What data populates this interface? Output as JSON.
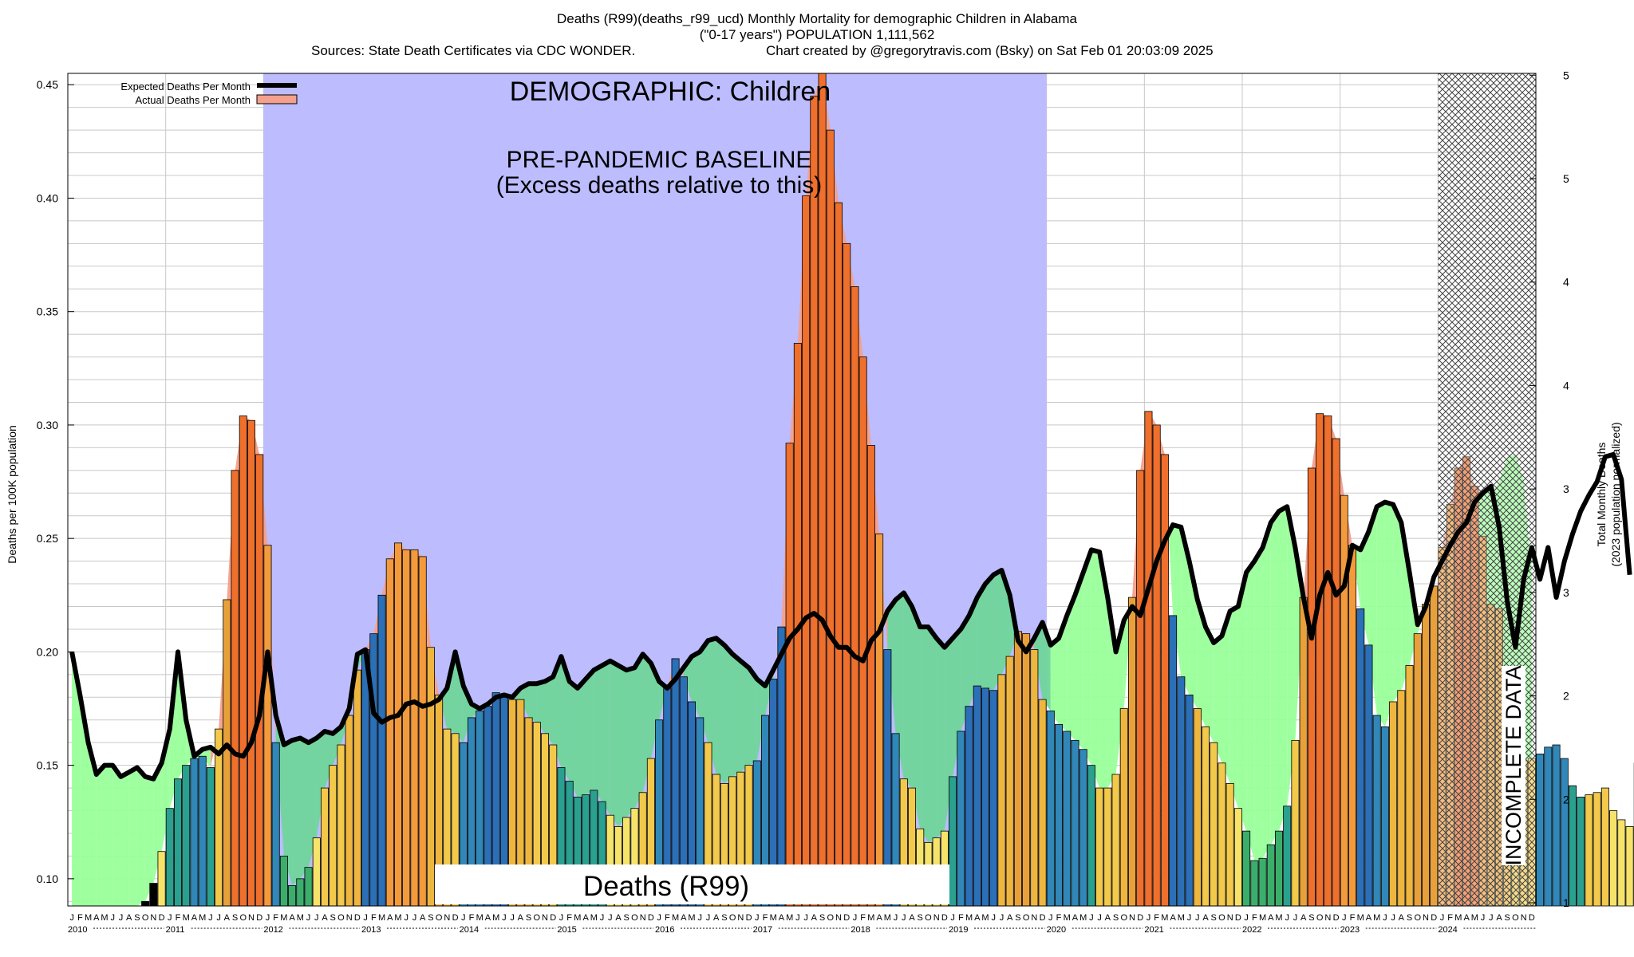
{
  "header": {
    "title": "Deaths (R99)(deaths_r99_ucd) Monthly Mortality for demographic Children in Alabama",
    "subtitle": "(\"0-17 years\") POPULATION 1,111,562",
    "sources": "Sources: State Death Certificates via CDC WONDER.",
    "credit": "Chart created by @gregorytravis.com (Bsky) on Sat Feb 01 20:03:09 2025"
  },
  "chart_data": {
    "type": "bar",
    "ylabel_left": "Deaths per 100K population",
    "ylabel_right": "Total Monthly Deaths",
    "ylabel_right_sub": "(2023 population normalized)",
    "ylim": [
      0.088,
      0.455
    ],
    "y_ticks_left": [
      "0.10",
      "0.15",
      "0.20",
      "0.25",
      "0.30",
      "0.35",
      "0.40",
      "0.45"
    ],
    "y_tick_values_left": [
      0.1,
      0.15,
      0.2,
      0.25,
      0.3,
      0.35,
      0.4,
      0.45
    ],
    "y_ticks_right": [
      "1",
      "2",
      "2",
      "3",
      "3",
      "4",
      "4",
      "5",
      "5"
    ],
    "y_tick_values_right": [
      0.0894,
      0.135,
      0.1806,
      0.2262,
      0.2718,
      0.3174,
      0.363,
      0.4086,
      0.4542
    ],
    "legend": {
      "position": "top-left",
      "items": [
        {
          "label": "Expected Deaths Per Month",
          "color": "#000000"
        },
        {
          "label": "Actual Deaths Per Month",
          "color": "#f4a08c"
        }
      ]
    },
    "annotations": {
      "demographic": "DEMOGRAPHIC: Children",
      "baseline_line1": "PRE-PANDEMIC BASELINE",
      "baseline_line2": "(Excess deaths relative to this)",
      "metric_label": "Deaths (R99)",
      "incomplete": "INCOMPLETE DATA"
    },
    "baseline_period": {
      "start": "2012-01",
      "end": "2019-12"
    },
    "incomplete_period": {
      "start": "2024-01",
      "end": "2024-12"
    },
    "month_letters": [
      "J",
      "F",
      "M",
      "A",
      "M",
      "J",
      "J",
      "A",
      "S",
      "O",
      "N",
      "D"
    ],
    "years": [
      "2010",
      "2011",
      "2012",
      "2013",
      "2014",
      "2015",
      "2016",
      "2017",
      "2018",
      "2019",
      "2020",
      "2021",
      "2022",
      "2023",
      "2024"
    ],
    "colors": {
      "baseline_bg": "#bcbcff",
      "green_fill": "#99ff99",
      "green_dark": "#6fd59a",
      "peak_fill": "#f4a08c",
      "hatch": "#555555"
    },
    "actual": [
      0.088,
      0.088,
      0.088,
      0.088,
      0.088,
      0.088,
      0.088,
      0.088,
      0.088,
      0.09,
      0.098,
      0.112,
      0.131,
      0.144,
      0.15,
      0.153,
      0.154,
      0.149,
      0.166,
      0.223,
      0.28,
      0.304,
      0.302,
      0.287,
      0.247,
      0.16,
      0.11,
      0.097,
      0.1,
      0.105,
      0.118,
      0.14,
      0.15,
      0.159,
      0.172,
      0.192,
      0.201,
      0.208,
      0.225,
      0.241,
      0.248,
      0.245,
      0.245,
      0.242,
      0.202,
      0.181,
      0.166,
      0.164,
      0.16,
      0.171,
      0.174,
      0.176,
      0.182,
      0.18,
      0.179,
      0.179,
      0.171,
      0.169,
      0.164,
      0.159,
      0.149,
      0.143,
      0.136,
      0.137,
      0.139,
      0.134,
      0.128,
      0.123,
      0.127,
      0.131,
      0.138,
      0.153,
      0.17,
      0.184,
      0.197,
      0.189,
      0.178,
      0.171,
      0.16,
      0.146,
      0.142,
      0.145,
      0.147,
      0.15,
      0.152,
      0.172,
      0.188,
      0.211,
      0.292,
      0.336,
      0.401,
      0.445,
      0.455,
      0.43,
      0.398,
      0.38,
      0.361,
      0.33,
      0.291,
      0.252,
      0.201,
      0.164,
      0.144,
      0.14,
      0.122,
      0.116,
      0.118,
      0.121,
      0.145,
      0.165,
      0.176,
      0.185,
      0.184,
      0.183,
      0.19,
      0.198,
      0.209,
      0.208,
      0.201,
      0.179,
      0.174,
      0.168,
      0.165,
      0.161,
      0.157,
      0.15,
      0.14,
      0.14,
      0.146,
      0.175,
      0.224,
      0.28,
      0.306,
      0.3,
      0.287,
      0.216,
      0.189,
      0.181,
      0.175,
      0.167,
      0.16,
      0.151,
      0.142,
      0.131,
      0.121,
      0.108,
      0.109,
      0.115,
      0.121,
      0.132,
      0.161,
      0.224,
      0.281,
      0.305,
      0.304,
      0.294,
      0.269,
      0.247,
      0.219,
      0.203,
      0.172,
      0.167,
      0.178,
      0.183,
      0.194,
      0.208,
      0.221,
      0.229,
      0.246,
      0.265,
      0.281,
      0.286,
      0.273,
      0.251,
      0.221,
      0.219,
      0.191,
      0.163,
      0.152,
      0.153,
      0.155,
      0.158,
      0.159,
      0.153,
      0.141,
      0.136,
      0.137,
      0.138,
      0.14,
      0.13,
      0.126,
      0.123
    ],
    "expected": [
      0.2,
      0.181,
      0.16,
      0.146,
      0.15,
      0.15,
      0.145,
      0.147,
      0.149,
      0.145,
      0.144,
      0.151,
      0.166,
      0.2,
      0.17,
      0.154,
      0.157,
      0.158,
      0.155,
      0.159,
      0.155,
      0.154,
      0.16,
      0.172,
      0.2,
      0.172,
      0.159,
      0.161,
      0.162,
      0.16,
      0.162,
      0.165,
      0.164,
      0.167,
      0.175,
      0.199,
      0.201,
      0.173,
      0.169,
      0.171,
      0.172,
      0.177,
      0.178,
      0.176,
      0.177,
      0.179,
      0.184,
      0.2,
      0.185,
      0.177,
      0.175,
      0.177,
      0.18,
      0.181,
      0.18,
      0.184,
      0.186,
      0.186,
      0.187,
      0.189,
      0.198,
      0.187,
      0.184,
      0.188,
      0.192,
      0.194,
      0.196,
      0.194,
      0.192,
      0.193,
      0.199,
      0.195,
      0.187,
      0.184,
      0.188,
      0.193,
      0.198,
      0.2,
      0.205,
      0.206,
      0.203,
      0.199,
      0.196,
      0.193,
      0.188,
      0.185,
      0.192,
      0.199,
      0.206,
      0.21,
      0.215,
      0.217,
      0.214,
      0.207,
      0.202,
      0.202,
      0.198,
      0.196,
      0.205,
      0.209,
      0.218,
      0.223,
      0.226,
      0.22,
      0.211,
      0.211,
      0.206,
      0.202,
      0.206,
      0.21,
      0.216,
      0.224,
      0.23,
      0.234,
      0.236,
      0.225,
      0.205,
      0.2,
      0.206,
      0.213,
      0.203,
      0.206,
      0.216,
      0.225,
      0.235,
      0.245,
      0.244,
      0.224,
      0.2,
      0.214,
      0.22,
      0.216,
      0.228,
      0.24,
      0.249,
      0.256,
      0.255,
      0.24,
      0.223,
      0.211,
      0.204,
      0.207,
      0.218,
      0.22,
      0.235,
      0.24,
      0.246,
      0.257,
      0.262,
      0.264,
      0.246,
      0.224,
      0.206,
      0.225,
      0.235,
      0.225,
      0.229,
      0.247,
      0.245,
      0.253,
      0.264,
      0.266,
      0.265,
      0.257,
      0.235,
      0.212,
      0.22,
      0.233,
      0.24,
      0.247,
      0.253,
      0.257,
      0.266,
      0.27,
      0.273,
      0.255,
      0.222,
      0.202,
      0.232,
      0.246
    ],
    "expected_2024": [
      0.232,
      0.246,
      0.224,
      0.24,
      0.252,
      0.262,
      0.269,
      0.275,
      0.286,
      0.287,
      0.276,
      0.234
    ]
  }
}
